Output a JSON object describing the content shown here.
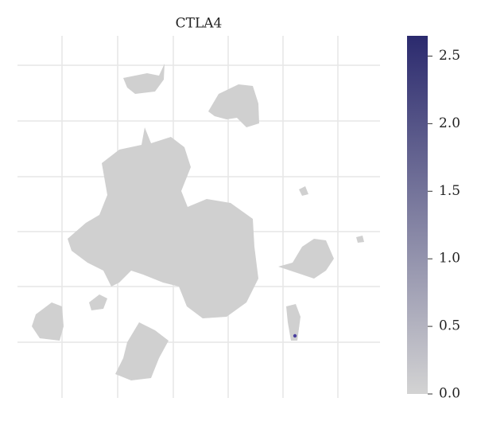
{
  "chart_data": {
    "type": "embedding",
    "title": "CTLA4",
    "colorbar": {
      "lim": [
        0,
        2.65
      ],
      "low_color": "#d3d3d3",
      "high_color": "#2b2a6e",
      "ticks": [
        {
          "value": 0,
          "label": "0.0"
        },
        0.5,
        {
          "value": 1,
          "label": "1.0"
        },
        1.5,
        {
          "value": 2,
          "label": "2.0"
        },
        2.5
      ]
    },
    "grid": true
  }
}
